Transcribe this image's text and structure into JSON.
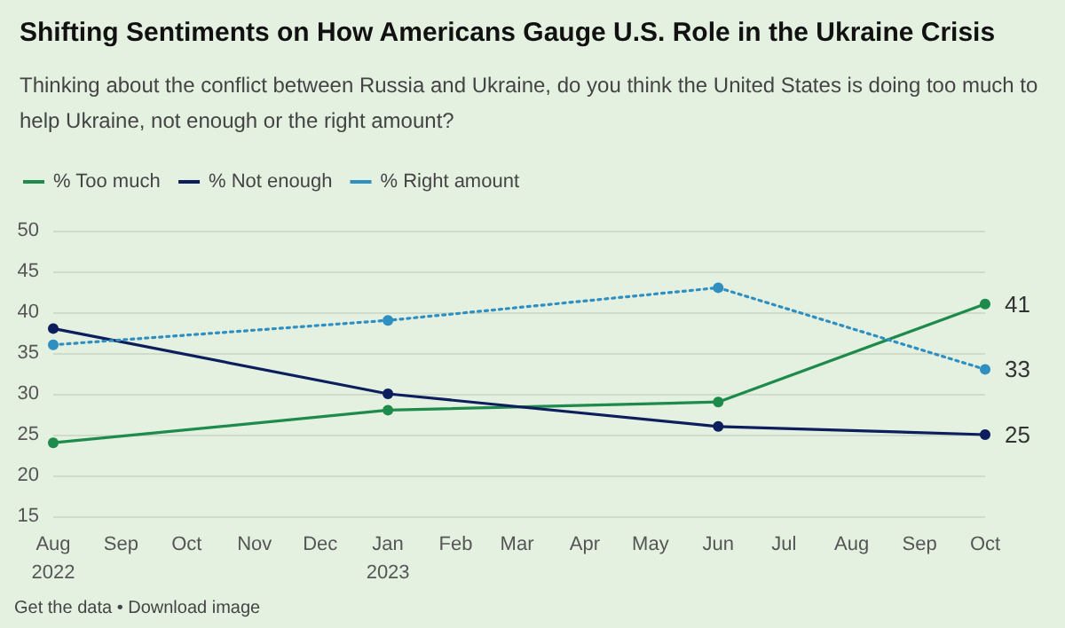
{
  "chart_data": {
    "type": "line",
    "title": "Shifting Sentiments on How Americans Gauge U.S. Role in the Ukraine Crisis",
    "subtitle": "Thinking about the conflict between Russia and Ukraine, do you think the United States is doing too much to help Ukraine, not enough or the right amount?",
    "x": [
      "2022-08",
      "2023-01",
      "2023-06",
      "2023-10"
    ],
    "series": [
      {
        "name": "% Too much",
        "color": "#1e8a4c",
        "line_style": "solid",
        "values": [
          24,
          28,
          29,
          41
        ],
        "value_labels": [
          null,
          null,
          null,
          "41"
        ]
      },
      {
        "name": "% Not enough",
        "color": "#0c1f5c",
        "line_style": "solid",
        "values": [
          38,
          30,
          26,
          25
        ],
        "value_labels": [
          null,
          null,
          null,
          "25"
        ]
      },
      {
        "name": "% Right amount",
        "color": "#2e8fc0",
        "line_style": "dotted",
        "values": [
          36,
          39,
          43,
          33
        ],
        "value_labels": [
          null,
          null,
          null,
          "33"
        ]
      }
    ],
    "xlim": [
      "2022-08",
      "2023-10"
    ],
    "xticks": [
      {
        "value": "2022-08",
        "label": "Aug\n2022"
      },
      {
        "value": "2022-09",
        "label": "Sep"
      },
      {
        "value": "2022-10",
        "label": "Oct"
      },
      {
        "value": "2022-11",
        "label": "Nov"
      },
      {
        "value": "2022-12",
        "label": "Dec"
      },
      {
        "value": "2023-01",
        "label": "Jan\n2023"
      },
      {
        "value": "2023-02",
        "label": "Feb"
      },
      {
        "value": "2023-03",
        "label": "Mar"
      },
      {
        "value": "2023-04",
        "label": "Apr"
      },
      {
        "value": "2023-05",
        "label": "May"
      },
      {
        "value": "2023-06",
        "label": "Jun"
      },
      {
        "value": "2023-07",
        "label": "Jul"
      },
      {
        "value": "2023-08",
        "label": "Aug"
      },
      {
        "value": "2023-09",
        "label": "Sep"
      },
      {
        "value": "2023-10",
        "label": "Oct"
      }
    ],
    "ylim": [
      15,
      50
    ],
    "yticks": [
      15,
      20,
      25,
      30,
      35,
      40,
      45,
      50
    ],
    "grid": "y",
    "legend": "top left",
    "marker": "circle",
    "annotations": [
      "Get the data • Download image"
    ]
  }
}
